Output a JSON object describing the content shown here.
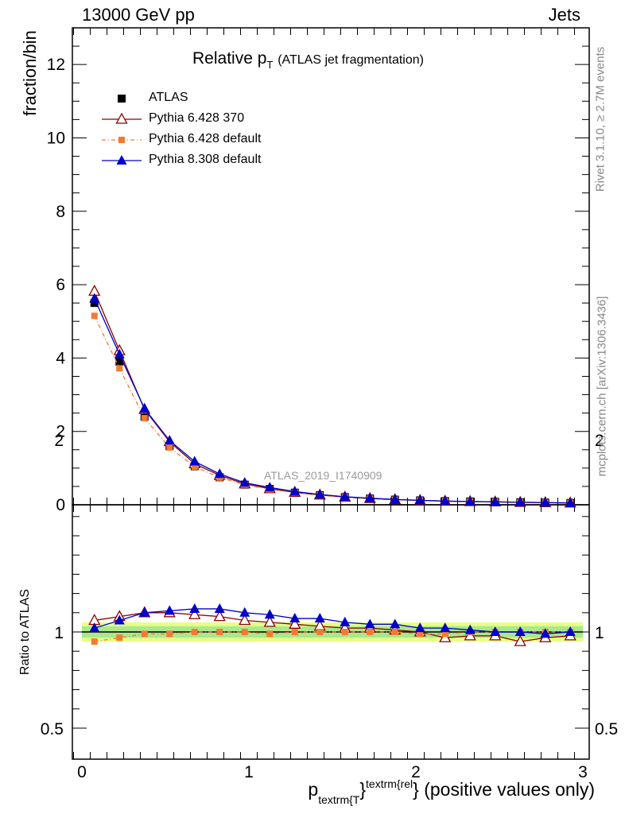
{
  "header": {
    "left": "13000 GeV pp",
    "right": "Jets"
  },
  "side_labels": {
    "rivet": "Rivet 3.1.10, ≥ 2.7M events",
    "mcplots": "mcplots.cern.ch [arXiv:1306.3436]"
  },
  "title": {
    "main": "Relative p",
    "sub": "T",
    "rest": "(ATLAS jet fragmentation)"
  },
  "watermark": "ATLAS_2019_I1740909",
  "xlabel": {
    "p": "p",
    "sub": "textrm{T",
    "sup": "textrm{rel",
    "rest": "} (positive values only)"
  },
  "chart_data": [
    {
      "type": "line",
      "ylabel": "fraction/bin",
      "xlim": [
        0,
        3
      ],
      "ylim": [
        0,
        13
      ],
      "x_ticks": [
        0,
        1,
        2,
        3
      ],
      "x_tick_labels": [
        "0",
        "1",
        "2",
        "3"
      ],
      "y_ticks": [
        0,
        2,
        4,
        6,
        8,
        10,
        12
      ],
      "y_tick_labels": [
        "0",
        "2",
        "4",
        "6",
        "8",
        "10",
        "12"
      ],
      "x": [
        0.075,
        0.225,
        0.375,
        0.525,
        0.675,
        0.825,
        0.975,
        1.125,
        1.275,
        1.425,
        1.575,
        1.725,
        1.875,
        2.025,
        2.175,
        2.325,
        2.475,
        2.625,
        2.775,
        2.925
      ],
      "series": [
        {
          "name": "ATLAS",
          "color": "#000000",
          "marker": "square",
          "values": [
            5.5,
            3.9,
            2.4,
            1.6,
            1.05,
            0.75,
            0.55,
            0.43,
            0.33,
            0.26,
            0.21,
            0.17,
            0.14,
            0.12,
            0.1,
            0.09,
            0.08,
            0.07,
            0.06,
            0.05
          ]
        },
        {
          "name": "Pythia 6.428 370",
          "color": "#8b0000",
          "marker": "open-triangle",
          "values": [
            5.82,
            4.2,
            2.6,
            1.72,
            1.12,
            0.8,
            0.57,
            0.44,
            0.34,
            0.265,
            0.21,
            0.17,
            0.14,
            0.12,
            0.097,
            0.088,
            0.078,
            0.066,
            0.058,
            0.049
          ]
        },
        {
          "name": "Pythia 6.428 default",
          "color": "#f47a30",
          "marker": "square-small",
          "values": [
            5.15,
            3.72,
            2.36,
            1.56,
            1.04,
            0.74,
            0.55,
            0.42,
            0.33,
            0.26,
            0.21,
            0.17,
            0.14,
            0.12,
            0.1,
            0.09,
            0.08,
            0.07,
            0.06,
            0.05
          ]
        },
        {
          "name": "Pythia 8.308 default",
          "color": "#0000cc",
          "marker": "triangle",
          "values": [
            5.62,
            4.1,
            2.62,
            1.75,
            1.18,
            0.84,
            0.6,
            0.47,
            0.36,
            0.28,
            0.22,
            0.18,
            0.145,
            0.122,
            0.102,
            0.09,
            0.08,
            0.07,
            0.06,
            0.05
          ]
        }
      ]
    },
    {
      "type": "line",
      "ylabel": "Ratio to ATLAS",
      "xlim": [
        0,
        3
      ],
      "ylim": [
        0.38,
        2.35
      ],
      "y_ticks": [
        0.5,
        1,
        2
      ],
      "y_tick_labels": [
        "0.5",
        "1",
        "2"
      ],
      "band": {
        "low": 0.97,
        "high": 1.03,
        "color": "#ddff55"
      },
      "x": [
        0.075,
        0.225,
        0.375,
        0.525,
        0.675,
        0.825,
        0.975,
        1.125,
        1.275,
        1.425,
        1.575,
        1.725,
        1.875,
        2.025,
        2.175,
        2.325,
        2.475,
        2.625,
        2.775,
        2.925
      ],
      "series": [
        {
          "name": "Pythia 6.428 370",
          "color": "#8b0000",
          "marker": "open-triangle",
          "values": [
            1.06,
            1.08,
            1.1,
            1.1,
            1.09,
            1.08,
            1.06,
            1.05,
            1.04,
            1.03,
            1.02,
            1.02,
            1.01,
            1.0,
            0.97,
            0.98,
            0.98,
            0.95,
            0.97,
            0.98
          ]
        },
        {
          "name": "Pythia 6.428 default",
          "color": "#f47a30",
          "marker": "square-small",
          "values": [
            0.95,
            0.97,
            0.99,
            0.99,
            1.0,
            1.0,
            1.0,
            0.99,
            1.0,
            1.0,
            1.0,
            1.0,
            1.0,
            0.99,
            0.99,
            1.0,
            1.0,
            1.0,
            1.0,
            1.0
          ]
        },
        {
          "name": "Pythia 8.308 default",
          "color": "#0000cc",
          "marker": "triangle",
          "values": [
            1.02,
            1.06,
            1.1,
            1.11,
            1.12,
            1.12,
            1.1,
            1.09,
            1.07,
            1.07,
            1.05,
            1.04,
            1.04,
            1.02,
            1.02,
            1.01,
            1.0,
            1.0,
            0.99,
            1.0
          ]
        }
      ]
    }
  ]
}
